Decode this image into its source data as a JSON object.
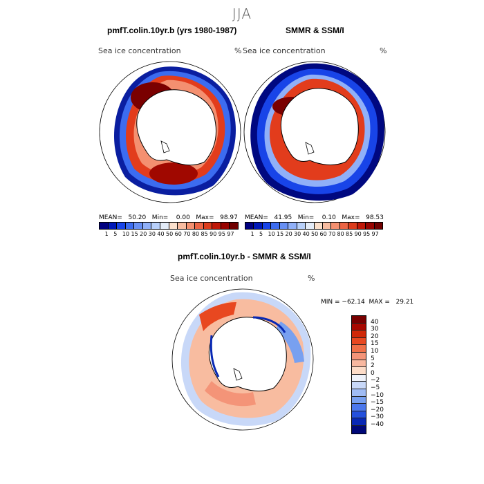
{
  "season": "JJA",
  "panels": [
    {
      "title": "pmfT.colin.10yr.b (yrs 1980-1987)",
      "variable": "Sea ice concentration",
      "units": "%",
      "stats": "MEAN=   50.20   Min=    0.00   Max=   98.97"
    },
    {
      "title": "SMMR & SSM/I",
      "variable": "Sea ice concentration",
      "units": "%",
      "stats": "MEAN=   41.95   Min=    0.10   Max=   98.53"
    },
    {
      "title": "pmfT.colin.10yr.b - SMMR & SSM/I",
      "variable": "Sea ice concentration",
      "units": "%",
      "stats": "MIN = −62.14  MAX =   29.21"
    }
  ],
  "colorbar_conc": {
    "labels": [
      "1",
      "5",
      "10",
      "15",
      "20",
      "30",
      "40",
      "50",
      "60",
      "70",
      "80",
      "85",
      "90",
      "95",
      "97"
    ],
    "colors": [
      "#000080",
      "#0018b8",
      "#1844e8",
      "#3c6cf0",
      "#6890f4",
      "#90b0f8",
      "#b8d0fa",
      "#e4ecf8",
      "#fbe0cc",
      "#f8bca0",
      "#f49070",
      "#ec6444",
      "#dc3c1c",
      "#c01808",
      "#980400",
      "#700000"
    ]
  },
  "colorbar_diff": {
    "labels": [
      "40",
      "30",
      "20",
      "15",
      "10",
      "5",
      "2",
      "0",
      "−2",
      "−5",
      "−10",
      "−15",
      "−20",
      "−30",
      "−40"
    ],
    "colors": [
      "#780000",
      "#a80800",
      "#d02808",
      "#e84820",
      "#f07048",
      "#f49478",
      "#f8b8a0",
      "#fcdcc8",
      "#eef2fa",
      "#c8d8f8",
      "#a0bcf4",
      "#78a0f0",
      "#4c78ec",
      "#2450dc",
      "#0828b4",
      "#000878"
    ]
  }
}
